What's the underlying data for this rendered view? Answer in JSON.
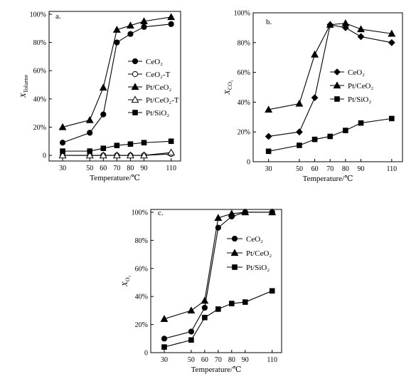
{
  "chart_data": [
    {
      "type": "line",
      "panel_label": "a.",
      "xlabel": "Temperature/℃",
      "ylabel": "X",
      "ylabel_sub": "Toluene",
      "x_ticks": [
        "30",
        "50",
        "60",
        "70",
        "80",
        "90",
        "110"
      ],
      "y_ticks": [
        "0",
        "20%",
        "40%",
        "60%",
        "80%",
        "100%"
      ],
      "xlim": [
        20,
        117
      ],
      "ylim": [
        -4,
        102
      ],
      "legend_position": "right",
      "series": [
        {
          "name": "CeO₂",
          "marker": "circle-filled",
          "x": [
            30,
            50,
            60,
            70,
            80,
            90,
            110
          ],
          "y": [
            9,
            16,
            29,
            80,
            86,
            91,
            93
          ]
        },
        {
          "name": "CeO₂-T",
          "marker": "circle-open",
          "x": [
            30,
            50,
            60,
            70,
            80,
            90,
            110
          ],
          "y": [
            0,
            0,
            0,
            0,
            0,
            0,
            1
          ]
        },
        {
          "name": "Pt/CeO₂",
          "marker": "triangle-filled",
          "x": [
            30,
            50,
            60,
            70,
            80,
            90,
            110
          ],
          "y": [
            20,
            25,
            48,
            89,
            92,
            95,
            98
          ]
        },
        {
          "name": "Pt/CeO₂-T",
          "marker": "triangle-open",
          "x": [
            30,
            50,
            60,
            70,
            80,
            90,
            110
          ],
          "y": [
            0,
            0,
            0,
            0,
            0,
            0,
            2
          ]
        },
        {
          "name": "Pt/SiO₂",
          "marker": "square-filled",
          "x": [
            30,
            50,
            60,
            70,
            80,
            90,
            110
          ],
          "y": [
            3,
            3,
            5,
            7,
            8,
            9,
            10
          ]
        }
      ]
    },
    {
      "type": "line",
      "panel_label": "b.",
      "xlabel": "Temperature/℃",
      "ylabel": "X",
      "ylabel_sub": "CO₂",
      "x_ticks": [
        "30",
        "50",
        "60",
        "70",
        "80",
        "90",
        "110"
      ],
      "y_ticks": [
        "0",
        "20%",
        "40%",
        "60%",
        "80%",
        "100%"
      ],
      "xlim": [
        20,
        117
      ],
      "ylim": [
        0,
        100
      ],
      "legend_position": "right",
      "series": [
        {
          "name": "CeO₂",
          "marker": "diamond-filled",
          "x": [
            30,
            50,
            60,
            70,
            80,
            90,
            110
          ],
          "y": [
            17,
            20,
            43,
            92,
            90,
            84,
            80
          ]
        },
        {
          "name": "Pt/CeO₂",
          "marker": "triangle-filled",
          "x": [
            30,
            50,
            60,
            70,
            80,
            90,
            110
          ],
          "y": [
            35,
            39,
            72,
            92,
            93,
            89,
            86
          ]
        },
        {
          "name": "Pt/SiO₂",
          "marker": "square-filled",
          "x": [
            30,
            50,
            60,
            70,
            80,
            90,
            110
          ],
          "y": [
            7,
            11,
            15,
            17,
            21,
            26,
            29
          ]
        }
      ]
    },
    {
      "type": "line",
      "panel_label": "c.",
      "xlabel": "Temperature/℃",
      "ylabel": "X",
      "ylabel_sub": "O₂",
      "x_ticks": [
        "30",
        "50",
        "60",
        "70",
        "80",
        "90",
        "110"
      ],
      "y_ticks": [
        "0",
        "20%",
        "40%",
        "60%",
        "80%",
        "100%"
      ],
      "xlim": [
        20,
        117
      ],
      "ylim": [
        0,
        102
      ],
      "legend_position": "right",
      "series": [
        {
          "name": "CeO₂",
          "marker": "circle-filled",
          "x": [
            30,
            50,
            60,
            70,
            80,
            90,
            110
          ],
          "y": [
            10,
            15,
            32,
            89,
            97,
            100,
            100
          ]
        },
        {
          "name": "Pt/CeO₂",
          "marker": "triangle-filled",
          "x": [
            30,
            50,
            60,
            70,
            80,
            90,
            110
          ],
          "y": [
            24,
            30,
            37,
            96,
            99,
            100,
            100
          ]
        },
        {
          "name": "Pt/SiO₂",
          "marker": "square-filled",
          "x": [
            30,
            50,
            60,
            70,
            80,
            90,
            110
          ],
          "y": [
            4,
            9,
            25,
            31,
            35,
            36,
            44
          ]
        }
      ]
    }
  ]
}
